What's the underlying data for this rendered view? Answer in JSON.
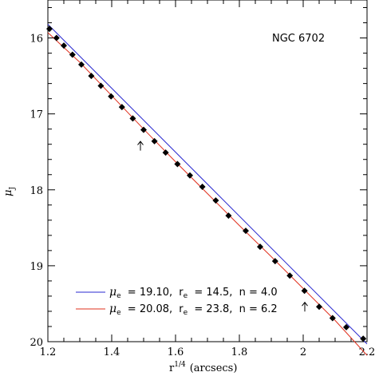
{
  "chart_data": {
    "type": "scatter",
    "title": "",
    "annotation": "NGC 6702",
    "xlabel": "r",
    "xlabel_sup": "1/4",
    "xlabel_unit": "(arcsecs)",
    "ylabel": "μ",
    "ylabel_sub": "J",
    "xlim": [
      1.2,
      2.2
    ],
    "ylim": [
      20,
      15.5
    ],
    "y_inverted": true,
    "grid": false,
    "x_ticks": [
      "1.2",
      "1.4",
      "1.6",
      "1.8",
      "2",
      "2.2"
    ],
    "y_ticks": [
      "16",
      "17",
      "18",
      "19",
      "20"
    ],
    "series": [
      {
        "kind": "points",
        "marker": "diamond",
        "color": "#000000",
        "x": [
          1.205,
          1.227,
          1.25,
          1.277,
          1.305,
          1.336,
          1.366,
          1.398,
          1.432,
          1.466,
          1.5,
          1.534,
          1.569,
          1.606,
          1.645,
          1.684,
          1.726,
          1.766,
          1.82,
          1.865,
          1.912,
          1.958,
          2.004,
          2.05,
          2.092,
          2.135,
          2.188
        ],
        "y": [
          15.88,
          16.0,
          16.1,
          16.22,
          16.35,
          16.5,
          16.63,
          16.77,
          16.91,
          17.06,
          17.21,
          17.36,
          17.51,
          17.66,
          17.81,
          17.96,
          18.14,
          18.34,
          18.54,
          18.75,
          18.94,
          19.13,
          19.33,
          19.54,
          19.69,
          19.81,
          19.96
        ]
      },
      {
        "kind": "line",
        "color": "#2a2ad0",
        "x": [
          1.2,
          2.2
        ],
        "y": [
          15.82,
          20.03
        ]
      },
      {
        "kind": "curve",
        "color": "#e0301e",
        "x": [
          1.2,
          1.3,
          1.4,
          1.5,
          1.6,
          1.7,
          1.8,
          1.9,
          2.0,
          2.1,
          2.2
        ],
        "y": [
          15.93,
          16.32,
          16.76,
          17.2,
          17.63,
          18.05,
          18.47,
          18.88,
          19.3,
          19.72,
          20.18
        ]
      }
    ],
    "arrows": [
      {
        "x": 1.49,
        "y": 17.43
      },
      {
        "x": 2.005,
        "y": 19.55
      }
    ],
    "legend": [
      {
        "color": "#2a2ad0",
        "mu_sub": "e",
        "mu_val": "= 19.10,",
        "r_sub": "e",
        "r_val": "= 14.5,",
        "n_text": "n = 4.0"
      },
      {
        "color": "#e0301e",
        "mu_sub": "e",
        "mu_val": "= 20.08,",
        "r_sub": "e",
        "r_val": "= 23.8,",
        "n_text": "n = 6.2"
      }
    ],
    "legend_symbols": {
      "mu": "μ",
      "r": "r"
    },
    "legend_placement": "bottom-left"
  }
}
